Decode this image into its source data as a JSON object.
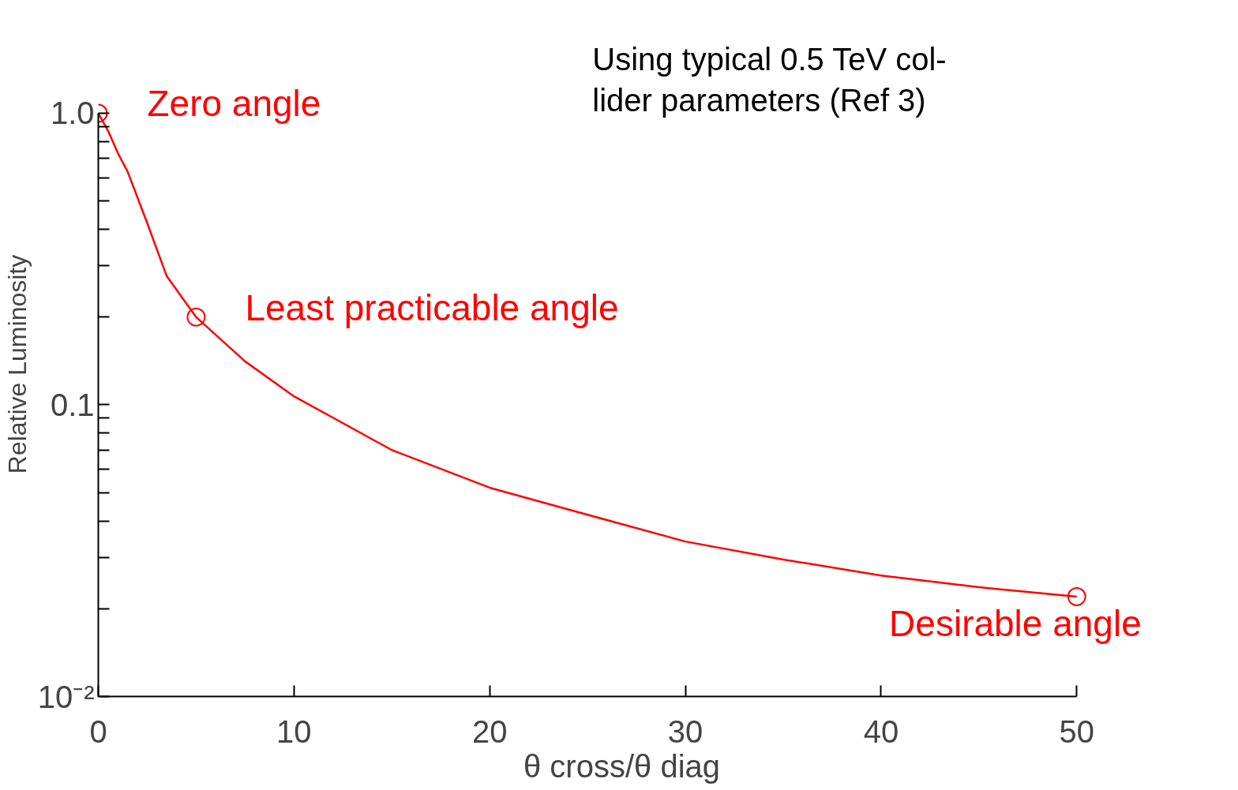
{
  "chart_data": {
    "type": "line",
    "xlabel": "θ cross/θ diag",
    "ylabel": "Relative Luminosity",
    "log": "y",
    "xlim": [
      0,
      50
    ],
    "xticks": [
      0,
      10,
      20,
      30,
      40,
      50
    ],
    "ylim": [
      0.01,
      1
    ],
    "yticks": [
      {
        "value": 0.01,
        "label": "10⁻²"
      },
      {
        "value": 0.02,
        "label": null
      },
      {
        "value": 0.03,
        "label": null
      },
      {
        "value": 0.04,
        "label": null
      },
      {
        "value": 0.05,
        "label": null
      },
      {
        "value": 0.06,
        "label": null
      },
      {
        "value": 0.07,
        "label": null
      },
      {
        "value": 0.08,
        "label": null
      },
      {
        "value": 0.09,
        "label": null
      },
      {
        "value": 0.1,
        "label": "0.1"
      },
      {
        "value": 0.2,
        "label": null
      },
      {
        "value": 0.3,
        "label": null
      },
      {
        "value": 0.4,
        "label": null
      },
      {
        "value": 0.5,
        "label": null
      },
      {
        "value": 0.6,
        "label": null
      },
      {
        "value": 0.7,
        "label": null
      },
      {
        "value": 0.8,
        "label": null
      },
      {
        "value": 0.9,
        "label": null
      },
      {
        "value": 1,
        "label": "1.0"
      }
    ],
    "grid": false,
    "series": [
      {
        "color": "#ff0000",
        "marker": "none",
        "x": [
          0,
          0.5,
          1,
          1.5,
          2.5,
          3.5,
          5,
          7.5,
          10,
          15,
          20,
          25,
          30,
          35,
          40,
          45,
          50
        ],
        "values": [
          1,
          0.87,
          0.73,
          0.63,
          0.42,
          0.276,
          0.2,
          0.141,
          0.107,
          0.07,
          0.052,
          0.042,
          0.034,
          0.0295,
          0.026,
          0.0237,
          0.022
        ]
      },
      {
        "type": "scatter",
        "color": "#ff0000",
        "marker": "circle",
        "x": [
          0,
          5,
          50
        ],
        "values": [
          1,
          0.2,
          0.022
        ]
      }
    ],
    "annotations": [
      {
        "text": "Zero angle",
        "x": 0,
        "y": 1
      },
      {
        "text": "Least practicable angle",
        "x": 5,
        "y": 0.2
      },
      {
        "text": "Desirable angle",
        "x": 50,
        "y": 0.022
      },
      "Using typical 0.5 TeV col-\nlider parameters (Ref 3)"
    ]
  }
}
